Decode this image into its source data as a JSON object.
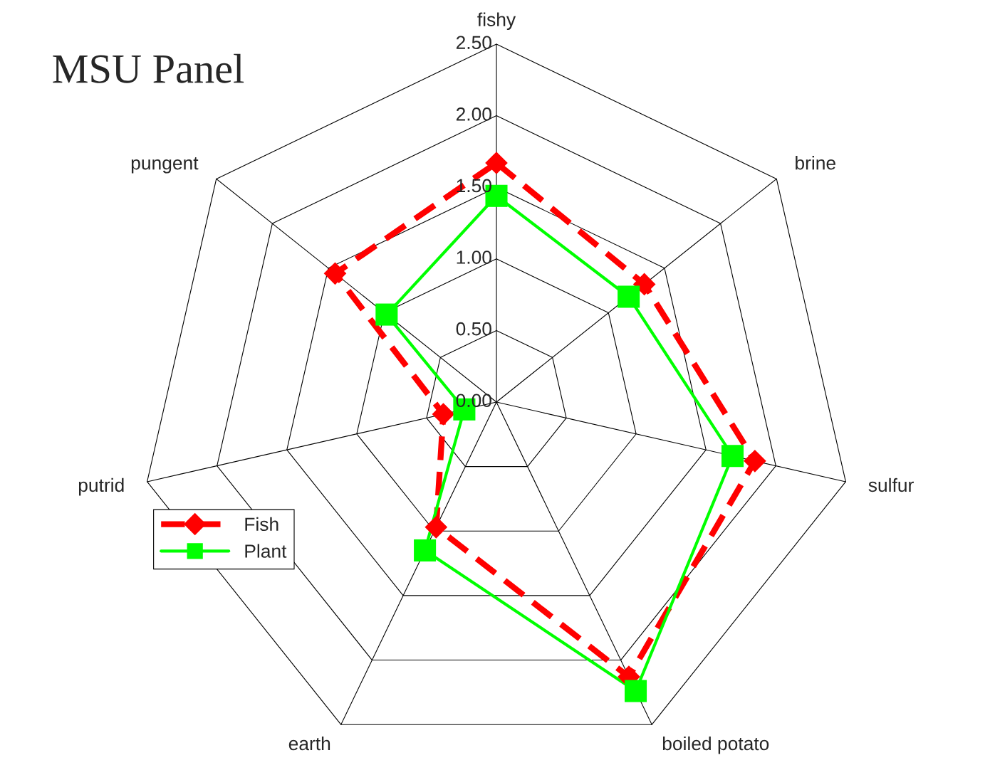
{
  "chart_data": {
    "type": "radar",
    "title": "MSU Panel",
    "categories": [
      "fishy",
      "brine",
      "sulfur",
      "boiled potato",
      "earth",
      "putrid",
      "pungent"
    ],
    "ylim": [
      0,
      2.5
    ],
    "yticks": [
      {
        "value": 0,
        "label": "0.00"
      },
      {
        "value": 0.5,
        "label": "0.50"
      },
      {
        "value": 1,
        "label": "1.00"
      },
      {
        "value": 1.5,
        "label": "1.50"
      },
      {
        "value": 2,
        "label": "2.00"
      },
      {
        "value": 2.5,
        "label": "2.50"
      }
    ],
    "grid": true,
    "legend": "left",
    "series": [
      {
        "name": "Fish",
        "color": "#ff0000",
        "marker": "diamond",
        "line_style": "dashed",
        "values": [
          1.67,
          1.32,
          1.85,
          2.13,
          0.97,
          0.38,
          1.44
        ]
      },
      {
        "name": "Plant",
        "color": "#00ff00",
        "marker": "square",
        "line_style": "solid",
        "values": [
          1.44,
          1.18,
          1.69,
          2.24,
          1.15,
          0.23,
          0.98
        ]
      }
    ]
  }
}
